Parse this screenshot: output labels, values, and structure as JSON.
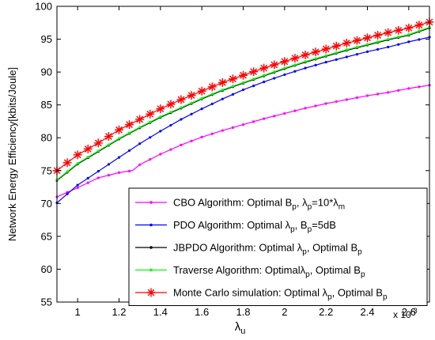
{
  "chart_data": {
    "type": "line",
    "ylabel": "Network Energy Efficiency[kbits/Joule]",
    "xlabel_main": "λ",
    "xlabel_sub": "u",
    "x_multiplier": "x 10",
    "x_multiplier_exp": "-3",
    "xlim": [
      0.9,
      2.7
    ],
    "ylim": [
      55,
      100
    ],
    "grid": false,
    "legend_position": "bottom-right",
    "x_ticks": [
      1,
      1.2,
      1.4,
      1.6,
      1.8,
      2,
      2.2,
      2.4,
      2.6
    ],
    "x_tick_labels": [
      "1",
      "1.2",
      "1.4",
      "1.6",
      "1.8",
      "2",
      "2.2",
      "2.4",
      "2.6"
    ],
    "y_ticks": [
      55,
      60,
      65,
      70,
      75,
      80,
      85,
      90,
      95,
      100
    ],
    "y_tick_labels": [
      "55",
      "60",
      "65",
      "70",
      "75",
      "80",
      "85",
      "90",
      "95",
      "100"
    ],
    "series": [
      {
        "name": "CBO Algorithm: Optimal B_p, λ_p=10*λ_m",
        "legend_parts": [
          [
            "CBO Algorithm: Optimal B",
            ""
          ],
          [
            "p",
            "sub"
          ],
          [
            ", λ",
            ""
          ],
          [
            "p",
            "sub"
          ],
          [
            "=10*λ",
            ""
          ],
          [
            "m",
            "sub"
          ]
        ],
        "color": "#ff00ff",
        "marker": "dot",
        "x": [
          0.9,
          1.0,
          1.1,
          1.2,
          1.265,
          1.3,
          1.4,
          1.5,
          1.6,
          1.7,
          1.8,
          1.9,
          2.0,
          2.1,
          2.2,
          2.3,
          2.4,
          2.5,
          2.6,
          2.7
        ],
        "y": [
          71.0,
          72.4,
          73.9,
          74.7,
          75.0,
          75.9,
          77.5,
          78.9,
          80.1,
          81.1,
          82.0,
          82.9,
          83.7,
          84.5,
          85.2,
          85.8,
          86.4,
          86.9,
          87.5,
          88.0
        ]
      },
      {
        "name": "PDO Algorithm: Optimal λ_p, B_p=5dB",
        "legend_parts": [
          [
            "PDO Algorithm: Optimal λ",
            ""
          ],
          [
            "p",
            "sub"
          ],
          [
            ", B",
            ""
          ],
          [
            "p",
            "sub"
          ],
          [
            "=5dB",
            ""
          ]
        ],
        "color": "#0000ff",
        "marker": "dot",
        "x": [
          0.9,
          1.0,
          1.1,
          1.2,
          1.3,
          1.4,
          1.5,
          1.6,
          1.7,
          1.8,
          1.9,
          2.0,
          2.1,
          2.2,
          2.3,
          2.4,
          2.5,
          2.6,
          2.7
        ],
        "y": [
          70.1,
          72.8,
          74.9,
          77.0,
          79.1,
          81.0,
          82.8,
          84.4,
          85.9,
          87.3,
          88.5,
          89.6,
          90.6,
          91.5,
          92.3,
          93.1,
          93.8,
          94.6,
          95.3
        ]
      },
      {
        "name": "JBPDO Algorithm: Optimal λ_p, Optimal B_p",
        "legend_parts": [
          [
            "JBPDO Algorithm: Optimal λ",
            ""
          ],
          [
            "p",
            "sub"
          ],
          [
            ", Optimal B",
            ""
          ],
          [
            "p",
            "sub"
          ]
        ],
        "color": "#000000",
        "marker": "dot",
        "x": [
          0.9,
          1.0,
          1.1,
          1.2,
          1.3,
          1.4,
          1.5,
          1.6,
          1.7,
          1.8,
          1.9,
          2.0,
          2.1,
          2.2,
          2.3,
          2.4,
          2.5,
          2.6,
          2.7
        ],
        "y": [
          73.5,
          76.0,
          77.9,
          79.8,
          81.5,
          83.1,
          84.5,
          85.9,
          87.2,
          88.3,
          89.4,
          90.5,
          91.5,
          92.4,
          93.3,
          94.1,
          94.9,
          95.6,
          96.7
        ]
      },
      {
        "name": "Traverse Algorithm: Optimal λ_p, Optimal B_p",
        "legend_parts": [
          [
            "Traverse Algorithm: Optimalλ",
            ""
          ],
          [
            "p",
            "sub"
          ],
          [
            ", Optimal B",
            ""
          ],
          [
            "p",
            "sub"
          ]
        ],
        "color": "#00ff00",
        "marker": "dot",
        "x": [
          0.9,
          1.0,
          1.1,
          1.2,
          1.3,
          1.4,
          1.5,
          1.6,
          1.7,
          1.8,
          1.9,
          2.0,
          2.1,
          2.2,
          2.3,
          2.4,
          2.5,
          2.6,
          2.7
        ],
        "y": [
          73.6,
          76.1,
          78.0,
          79.9,
          81.6,
          83.2,
          84.6,
          86.0,
          87.3,
          88.4,
          89.5,
          90.6,
          91.6,
          92.5,
          93.4,
          94.2,
          95.0,
          95.7,
          96.8
        ]
      },
      {
        "name": "Monte Carlo simulation: Optimal λ_p, Optimal B_p",
        "legend_parts": [
          [
            "Monte Carlo simulation: Optimal λ",
            ""
          ],
          [
            "p",
            "sub"
          ],
          [
            ", Optimal B",
            ""
          ],
          [
            "p",
            "sub"
          ]
        ],
        "color": "#ff0000",
        "marker": "star",
        "x": [
          0.9,
          1.0,
          1.1,
          1.2,
          1.3,
          1.4,
          1.5,
          1.6,
          1.7,
          1.8,
          1.9,
          2.0,
          2.1,
          2.2,
          2.3,
          2.4,
          2.5,
          2.6,
          2.7
        ],
        "y": [
          75.0,
          77.4,
          79.2,
          81.2,
          82.8,
          84.4,
          85.8,
          87.1,
          88.4,
          89.5,
          90.6,
          91.6,
          92.6,
          93.5,
          94.4,
          95.2,
          96.0,
          96.7,
          97.6
        ]
      }
    ]
  }
}
